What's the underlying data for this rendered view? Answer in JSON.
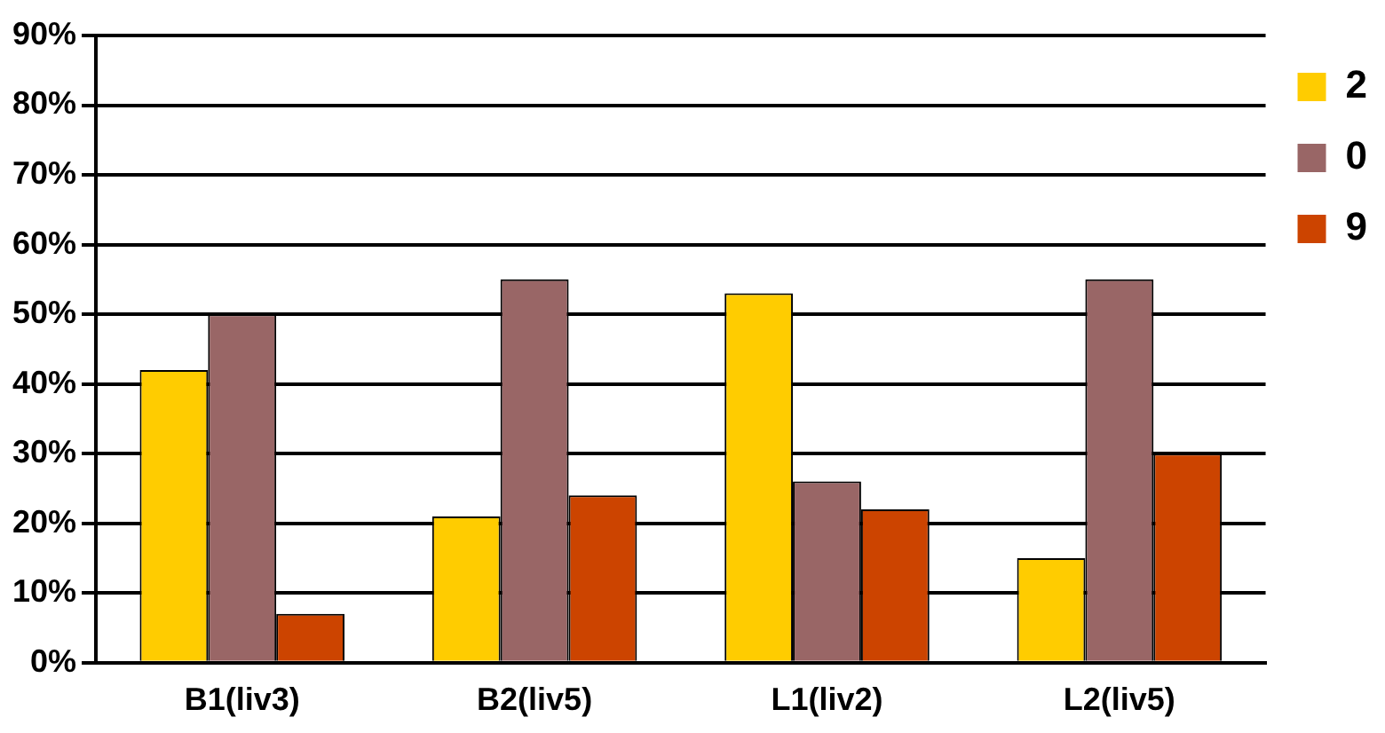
{
  "chart_data": {
    "type": "bar",
    "categories": [
      "B1(liv3)",
      "B2(liv5)",
      "L1(liv2)",
      "L2(liv5)"
    ],
    "series": [
      {
        "name": "2",
        "color": "#ffcc00",
        "values": [
          42,
          21,
          53,
          15
        ]
      },
      {
        "name": "0",
        "color": "#996666",
        "values": [
          50,
          55,
          26,
          55
        ]
      },
      {
        "name": "9",
        "color": "#cc4400",
        "values": [
          7,
          24,
          22,
          30
        ]
      }
    ],
    "ylim": [
      0,
      90
    ],
    "yticks": [
      {
        "value": 0,
        "label": "0%"
      },
      {
        "value": 10,
        "label": "10%"
      },
      {
        "value": 20,
        "label": "20%"
      },
      {
        "value": 30,
        "label": "30%"
      },
      {
        "value": 40,
        "label": "40%"
      },
      {
        "value": 50,
        "label": "50%"
      },
      {
        "value": 60,
        "label": "60%"
      },
      {
        "value": 70,
        "label": "70%"
      },
      {
        "value": 80,
        "label": "80%"
      },
      {
        "value": 90,
        "label": "90%"
      }
    ],
    "grid": "y",
    "legend": "right"
  }
}
